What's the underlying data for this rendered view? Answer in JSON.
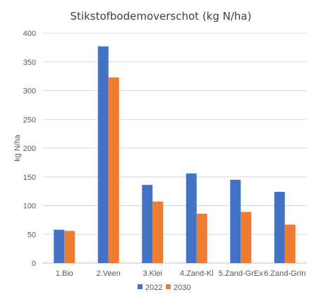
{
  "chart_data": {
    "type": "bar",
    "title": "Stikstofbodemoverschot  (kg N/ha)",
    "xlabel": "",
    "ylabel": "kg N/ha",
    "ylim": [
      0,
      400
    ],
    "yticks": [
      0,
      50,
      100,
      150,
      200,
      250,
      300,
      350,
      400
    ],
    "grid": true,
    "legend": "bottom",
    "categories": [
      "1.Bio",
      "2.Veen",
      "3.Klei",
      "4.Zand-Kl",
      "5.Zand-GrEx",
      "6.Zand-GrIn"
    ],
    "series": [
      {
        "name": "2022",
        "color": "#4472C4",
        "values": [
          58,
          377,
          136,
          156,
          145,
          124
        ]
      },
      {
        "name": "2030",
        "color": "#ED7D31",
        "values": [
          56,
          323,
          107,
          86,
          89,
          67
        ]
      }
    ]
  }
}
